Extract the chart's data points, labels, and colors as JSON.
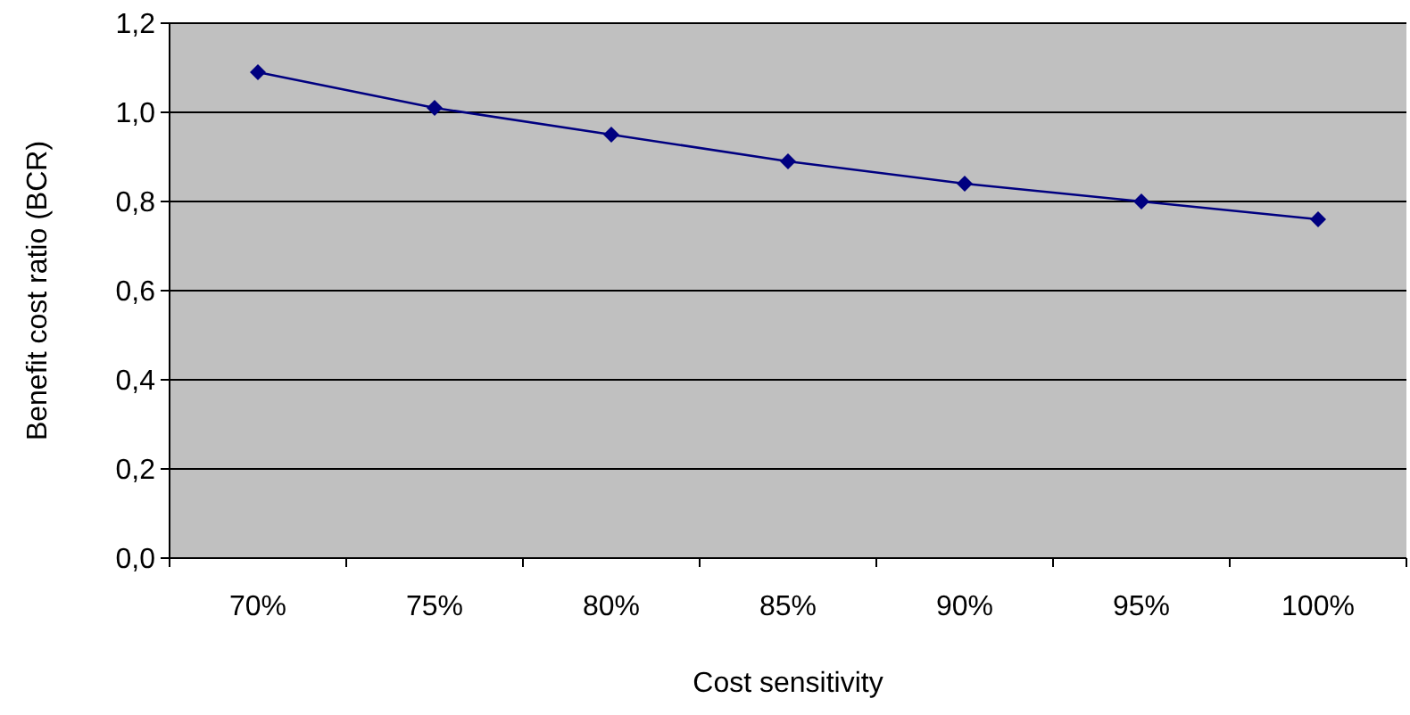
{
  "chart_data": {
    "type": "line",
    "xlabel": "Cost sensitivity",
    "ylabel": "Benefit cost ratio (BCR)",
    "categories": [
      "70%",
      "75%",
      "80%",
      "85%",
      "90%",
      "95%",
      "100%"
    ],
    "series": [
      {
        "color": "#000080",
        "values": [
          1.09,
          1.01,
          0.95,
          0.89,
          0.84,
          0.8,
          0.76
        ]
      }
    ],
    "ylim": [
      0,
      1.2
    ],
    "yticks": [
      {
        "value": 0,
        "label": "0,0"
      },
      {
        "value": 0.2,
        "label": "0,2"
      },
      {
        "value": 0.4,
        "label": "0,4"
      },
      {
        "value": 0.6,
        "label": "0,6"
      },
      {
        "value": 0.8,
        "label": "0,8"
      },
      {
        "value": 1,
        "label": "1,0"
      },
      {
        "value": 1.2,
        "label": "1,2"
      }
    ],
    "grid": "y",
    "marker": "diamond",
    "line_style": "solid"
  }
}
